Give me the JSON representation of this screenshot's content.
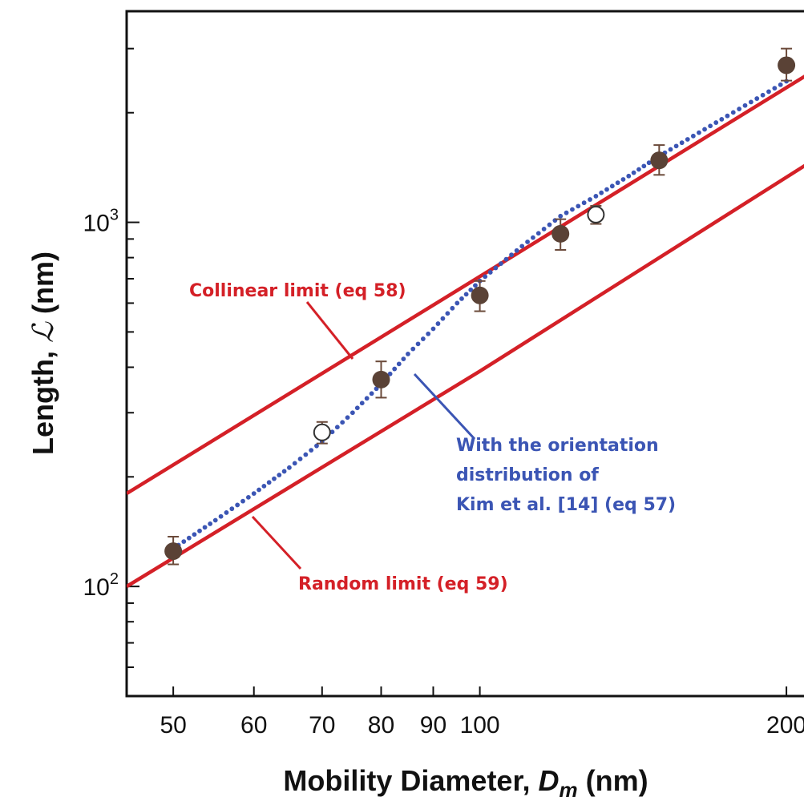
{
  "chart_data": {
    "type": "scatter",
    "x_scale": "log",
    "y_scale": "log",
    "xlim": [
      45,
      210
    ],
    "ylim": [
      50,
      3800
    ],
    "x_ticks": [
      50,
      60,
      70,
      80,
      90,
      100,
      200
    ],
    "x_tick_labels": [
      "50",
      "60",
      "70",
      "80",
      "90",
      "100",
      "200"
    ],
    "y_major_ticks": [
      100,
      1000
    ],
    "y_tick_labels": [
      {
        "base": "10",
        "exp": "2"
      },
      {
        "base": "10",
        "exp": "3"
      }
    ],
    "y_minor_ticks": [
      60,
      70,
      80,
      90,
      200,
      300,
      400,
      500,
      600,
      700,
      800,
      900,
      2000,
      3000
    ],
    "xlabel": {
      "prefix": "Mobility Diameter, ",
      "symbol": "D",
      "subscript": "m",
      "suffix": " (nm)"
    },
    "ylabel": {
      "prefix": "Length, ",
      "symbol": "ℒ",
      "suffix": " (nm)"
    },
    "grid": false,
    "colors": {
      "limits": "#d42027",
      "orientation": "#3b55b4",
      "filled_marker": "#5a4236",
      "axis": "#111111"
    },
    "series": [
      {
        "kind": "filled_markers",
        "points": [
          {
            "x": 50,
            "y": 125,
            "err_lo": 10,
            "err_hi": 12
          },
          {
            "x": 80,
            "y": 370,
            "err_lo": 40,
            "err_hi": 45
          },
          {
            "x": 100,
            "y": 630,
            "err_lo": 60,
            "err_hi": 60
          },
          {
            "x": 120,
            "y": 930,
            "err_lo": 90,
            "err_hi": 90
          },
          {
            "x": 150,
            "y": 1480,
            "err_lo": 130,
            "err_hi": 150
          },
          {
            "x": 200,
            "y": 2700,
            "err_lo": 250,
            "err_hi": 300
          }
        ]
      },
      {
        "kind": "open_markers",
        "points": [
          {
            "x": 70,
            "y": 265,
            "err_lo": 18,
            "err_hi": 18
          },
          {
            "x": 130,
            "y": 1050,
            "err_lo": 60,
            "err_hi": 60
          }
        ]
      },
      {
        "kind": "line",
        "label": "Collinear limit (eq 58)",
        "points": [
          [
            45,
            180
          ],
          [
            100,
            710
          ],
          [
            210,
            2550
          ]
        ]
      },
      {
        "kind": "line",
        "label": "Random limit (eq 59)",
        "points": [
          [
            45,
            100
          ],
          [
            100,
            390
          ],
          [
            210,
            1450
          ]
        ]
      },
      {
        "kind": "dotted",
        "label": [
          "With the orientation",
          "distribution of",
          "Kim et al. [14] (eq 57)"
        ],
        "points": [
          [
            50,
            127
          ],
          [
            55,
            152
          ],
          [
            60,
            180
          ],
          [
            65,
            212
          ],
          [
            70,
            250
          ],
          [
            75,
            300
          ],
          [
            80,
            360
          ],
          [
            85,
            435
          ],
          [
            90,
            510
          ],
          [
            95,
            600
          ],
          [
            100,
            690
          ],
          [
            110,
            860
          ],
          [
            120,
            1040
          ],
          [
            130,
            1180
          ],
          [
            140,
            1340
          ],
          [
            150,
            1520
          ],
          [
            175,
            1960
          ],
          [
            200,
            2440
          ]
        ]
      }
    ]
  }
}
